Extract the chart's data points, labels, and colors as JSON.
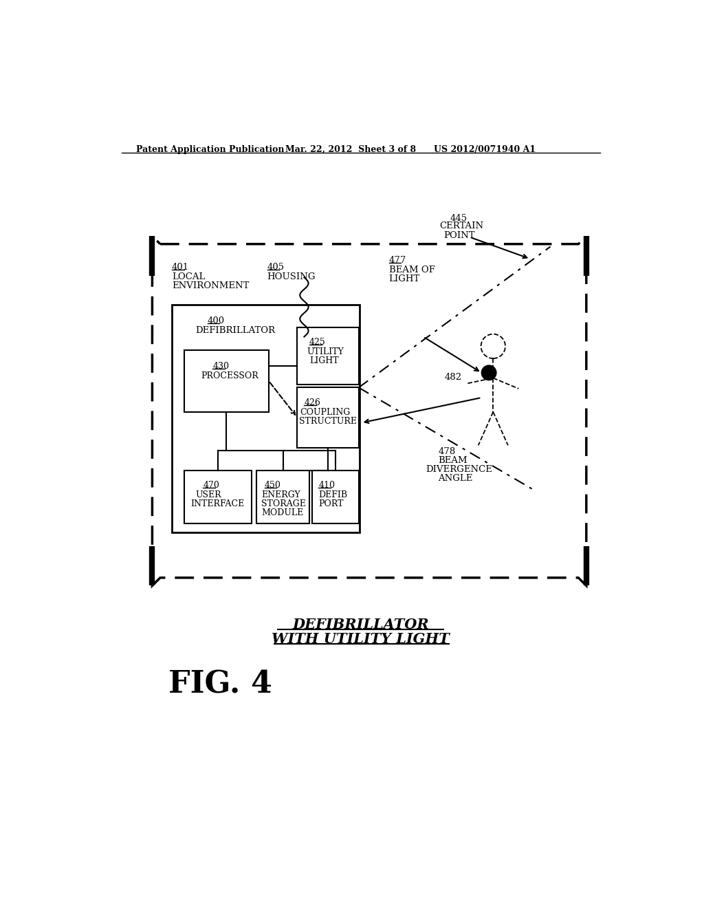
{
  "title_line1": "DEFIBRILLATOR",
  "title_line2": "WITH UTILITY LIGHT",
  "fig_label": "FIG. 4",
  "header_left": "Patent Application Publication",
  "header_mid": "Mar. 22, 2012  Sheet 3 of 8",
  "header_right": "US 2012/0071940 A1",
  "bg_color": "#ffffff",
  "text_color": "#000000"
}
